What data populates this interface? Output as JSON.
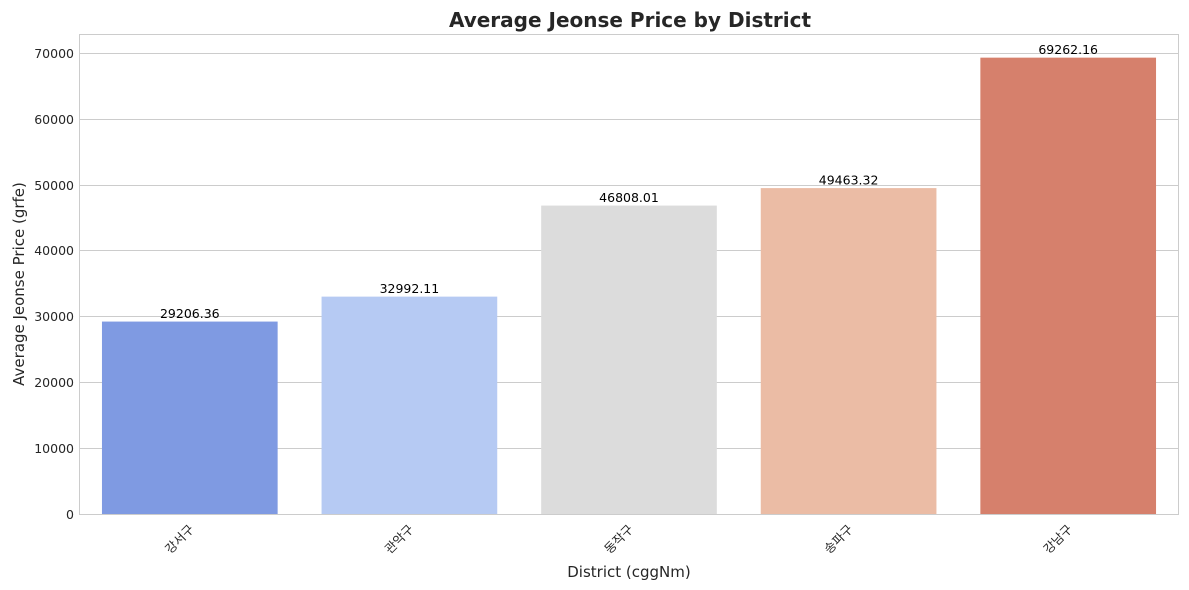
{
  "chart_data": {
    "type": "bar",
    "title": "Average Jeonse Price by District",
    "xlabel": "District (cggNm)",
    "ylabel": "Average Jeonse Price (grfe)",
    "categories": [
      "강서구",
      "관악구",
      "동작구",
      "송파구",
      "강남구"
    ],
    "values": [
      29206.36,
      32992.11,
      46808.01,
      49463.32,
      69262.16
    ],
    "data_labels": [
      "29206.36",
      "32992.11",
      "46808.01",
      "49463.32",
      "69262.16"
    ],
    "colors": [
      "#7f9ae2",
      "#b6caf3",
      "#dcdcdc",
      "#ebbca5",
      "#d6806c"
    ],
    "yticks": [
      0,
      10000,
      20000,
      30000,
      40000,
      50000,
      60000,
      70000
    ],
    "ylim": [
      0,
      72700
    ],
    "grid": true,
    "legend": "none"
  }
}
